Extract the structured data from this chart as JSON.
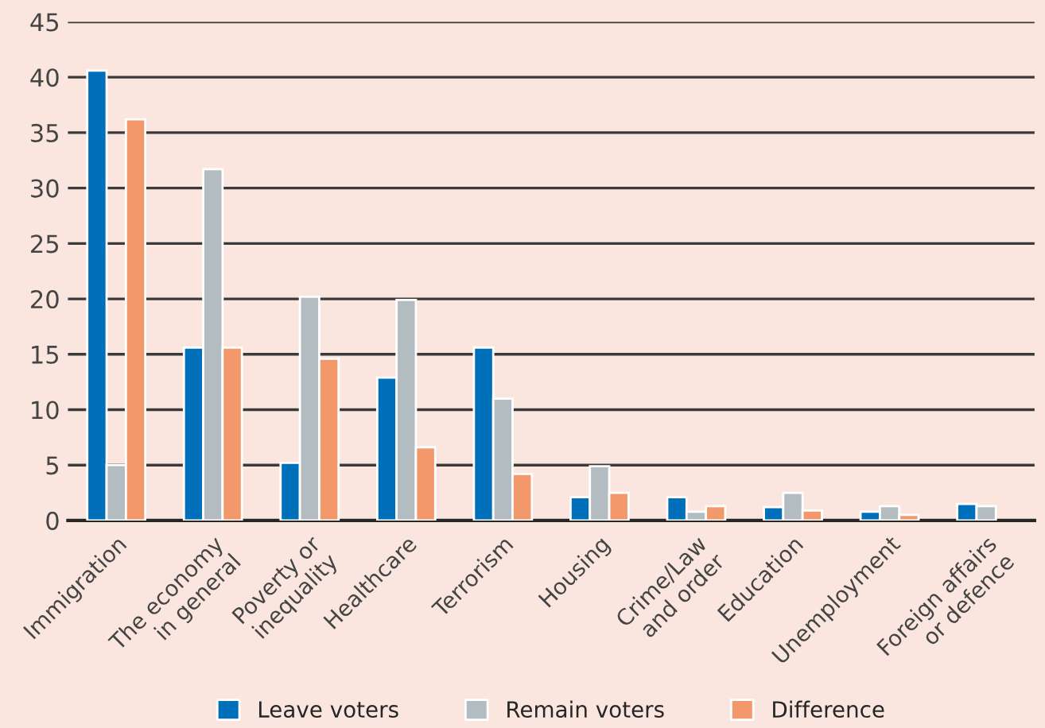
{
  "chart_data": {
    "type": "bar",
    "categories": [
      "Immigration",
      "The economy\nin general",
      "Poverty or\ninequality",
      "Healthcare",
      "Terrorism",
      "Housing",
      "Crime/Law\nand order",
      "Education",
      "Unemployment",
      "Foreign affairs\nor defence"
    ],
    "series": [
      {
        "name": "Leave voters",
        "color": "#006fba",
        "values": [
          40.6,
          15.6,
          5.2,
          12.9,
          15.6,
          2.1,
          2.1,
          1.2,
          0.8,
          1.5
        ]
      },
      {
        "name": "Remain voters",
        "color": "#b3bcc1",
        "values": [
          5.0,
          31.7,
          20.2,
          19.9,
          11.0,
          4.9,
          0.8,
          2.5,
          1.3,
          1.3
        ]
      },
      {
        "name": "Difference",
        "color": "#f2986a",
        "values": [
          36.2,
          15.6,
          14.6,
          6.6,
          4.2,
          2.5,
          1.3,
          0.9,
          0.5,
          null
        ]
      }
    ],
    "ylim": [
      0,
      45
    ],
    "yticks": [
      0,
      5,
      10,
      15,
      20,
      25,
      30,
      35,
      40,
      45
    ],
    "grid": "y",
    "legend": "bottom"
  }
}
